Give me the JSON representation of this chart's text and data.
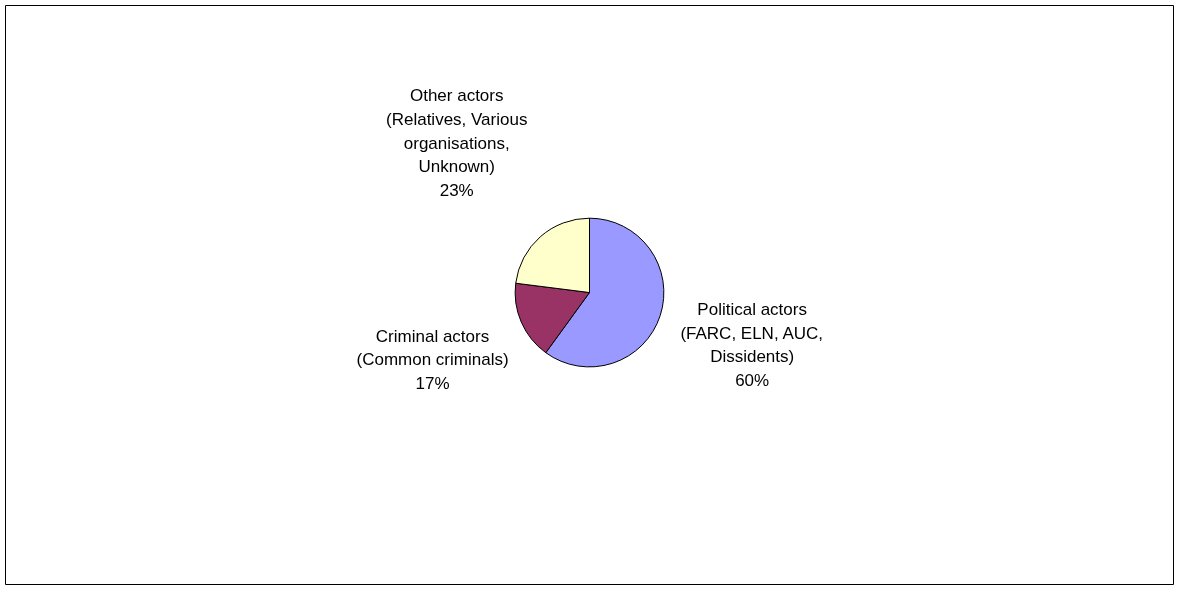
{
  "chart_data": {
    "type": "pie",
    "categories": [
      "Political actors\n(FARC, ELN, AUC,\nDissidents)",
      "Criminal actors\n(Common criminals)",
      "Other actors\n(Relatives, Various\norganisations,\nUnknown)"
    ],
    "values": [
      60,
      17,
      23
    ],
    "value_labels": [
      "60%",
      "17%",
      "23%"
    ],
    "colors": [
      "#9999ff",
      "#993366",
      "#ffffcc"
    ]
  }
}
